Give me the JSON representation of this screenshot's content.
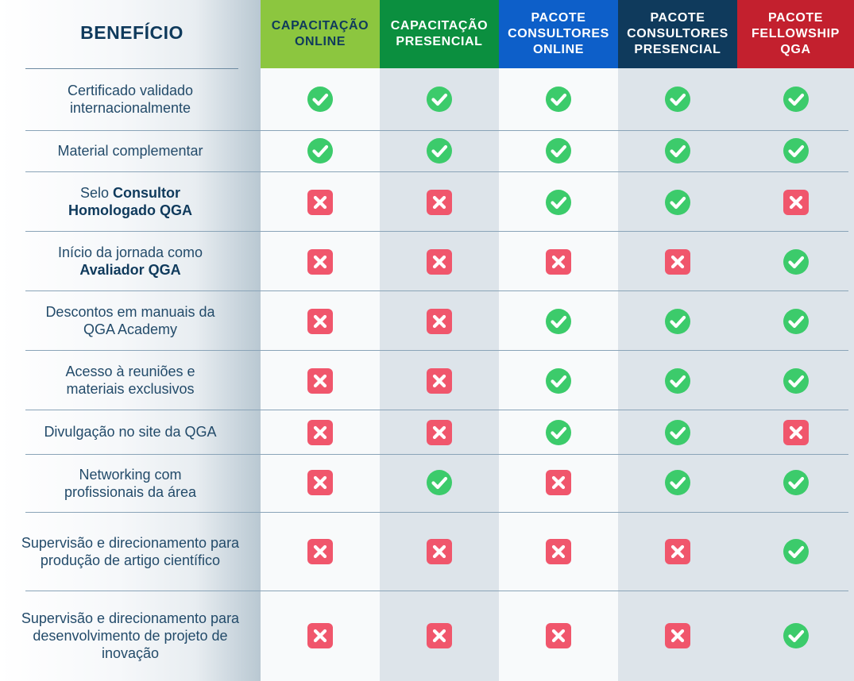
{
  "benefit_header": "BENEFÍCIO",
  "plans": [
    {
      "name": "CAPACITAÇÃO\nONLINE",
      "color": "#8cc63f",
      "text_color": "#0f3a5c"
    },
    {
      "name": "CAPACITAÇÃO\nPRESENCIAL",
      "color": "#0b8f3f",
      "text_color": "#ffffff"
    },
    {
      "name": "PACOTE\nCONSULTORES\nONLINE",
      "color": "#0d5fc9",
      "text_color": "#ffffff"
    },
    {
      "name": "PACOTE\nCONSULTORES\nPRESENCIAL",
      "color": "#0f3a5c",
      "text_color": "#ffffff"
    },
    {
      "name": "PACOTE\nFELLOWSHIP\nQGA",
      "color": "#c3202e",
      "text_color": "#ffffff"
    }
  ],
  "rows": [
    {
      "label": [
        {
          "t": "Certificado validado internacionalmente"
        }
      ],
      "values": [
        true,
        true,
        true,
        true,
        true
      ]
    },
    {
      "label": [
        {
          "t": "Material complementar"
        }
      ],
      "values": [
        true,
        true,
        true,
        true,
        true
      ]
    },
    {
      "label": [
        {
          "t": "Selo "
        },
        {
          "t": "Consultor Homologado QGA",
          "b": true
        }
      ],
      "values": [
        false,
        false,
        true,
        true,
        false
      ]
    },
    {
      "label": [
        {
          "t": "Início da jornada como "
        },
        {
          "t": "Avaliador QGA",
          "b": true
        }
      ],
      "values": [
        false,
        false,
        false,
        false,
        true
      ]
    },
    {
      "label": [
        {
          "t": "Descontos em manuais da QGA Academy"
        }
      ],
      "values": [
        false,
        false,
        true,
        true,
        true
      ]
    },
    {
      "label": [
        {
          "t": "Acesso à reuniões e materiais exclusivos"
        }
      ],
      "values": [
        false,
        false,
        true,
        true,
        true
      ]
    },
    {
      "label": [
        {
          "t": "Divulgação no site da QGA"
        }
      ],
      "values": [
        false,
        false,
        true,
        true,
        false
      ]
    },
    {
      "label": [
        {
          "t": "Networking com profissionais da área"
        }
      ],
      "values": [
        false,
        true,
        false,
        true,
        true
      ]
    },
    {
      "label": [
        {
          "t": "Supervisão e direcionamento para produção de artigo científico"
        }
      ],
      "values": [
        false,
        false,
        false,
        false,
        true
      ]
    },
    {
      "label": [
        {
          "t": "Supervisão e direcionamento para desenvolvimento de projeto de inovação"
        }
      ],
      "values": [
        false,
        false,
        false,
        false,
        true
      ]
    }
  ],
  "icons": {
    "included": "check-icon",
    "not_included": "cross-icon"
  },
  "colors": {
    "check": "#3ccb6b",
    "cross": "#f0566c",
    "title": "#0f3a5c",
    "label": "#234b6a"
  }
}
